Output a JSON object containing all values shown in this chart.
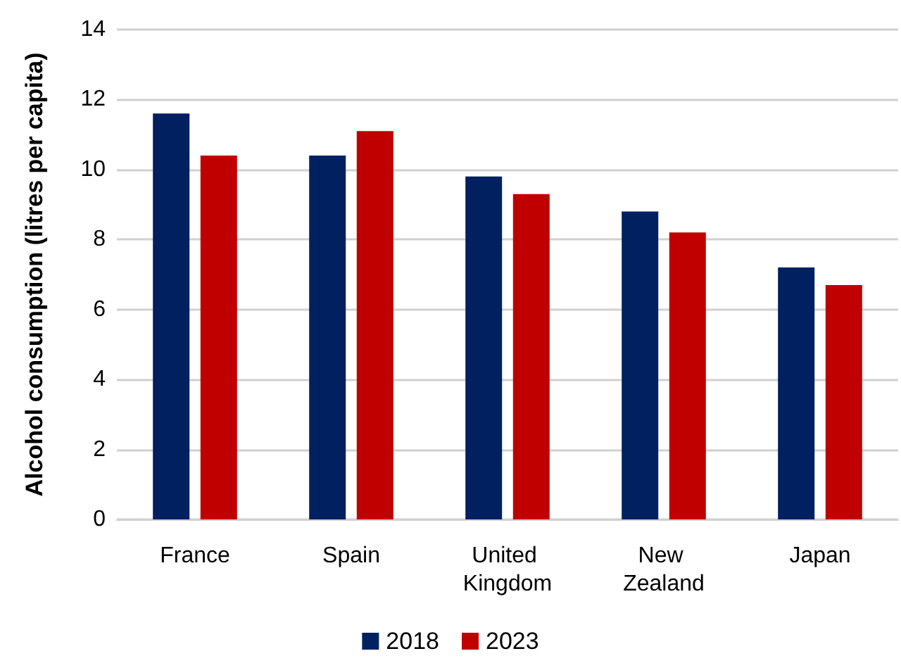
{
  "chart_data": {
    "type": "bar",
    "ylabel": "Alcohol consumption (litres per capita)",
    "categories": [
      "France",
      "Spain",
      "United Kingdom",
      "New Zealand",
      "Japan"
    ],
    "series": [
      {
        "name": "2018",
        "color": "#002060",
        "values": [
          11.6,
          10.4,
          9.8,
          8.8,
          7.2
        ]
      },
      {
        "name": "2023",
        "color": "#c00000",
        "values": [
          10.4,
          11.1,
          9.3,
          8.2,
          6.7
        ]
      }
    ],
    "ylim": [
      0,
      14
    ],
    "yticks": [
      0,
      2,
      4,
      6,
      8,
      10,
      12,
      14
    ],
    "grid": "y",
    "legend": "bottom"
  }
}
